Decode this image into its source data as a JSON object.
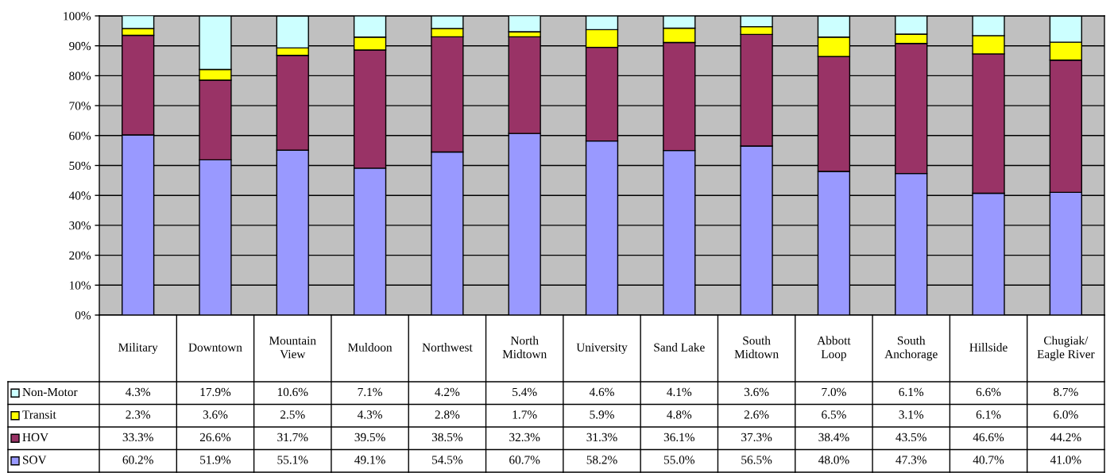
{
  "chart_data": {
    "type": "bar",
    "stacked": true,
    "categories": [
      "Military",
      "Downtown",
      "Mountain\nView",
      "Muldoon",
      "Northwest",
      "North\nMidtown",
      "University",
      "Sand Lake",
      "South\nMidtown",
      "Abbott\nLoop",
      "South\nAnchorage",
      "Hillside",
      "Chugiak/\nEagle River"
    ],
    "series": [
      {
        "name": "SOV",
        "color": "#9999ff",
        "values": [
          60.2,
          51.9,
          55.1,
          49.1,
          54.5,
          60.7,
          58.2,
          55.0,
          56.5,
          48.0,
          47.3,
          40.7,
          41.0
        ],
        "value_labels": [
          "60.2%",
          "51.9%",
          "55.1%",
          "49.1%",
          "54.5%",
          "60.7%",
          "58.2%",
          "55.0%",
          "56.5%",
          "48.0%",
          "47.3%",
          "40.7%",
          "41.0%"
        ]
      },
      {
        "name": "HOV",
        "color": "#993366",
        "values": [
          33.3,
          26.6,
          31.7,
          39.5,
          38.5,
          32.3,
          31.3,
          36.1,
          37.3,
          38.4,
          43.5,
          46.6,
          44.2
        ],
        "value_labels": [
          "33.3%",
          "26.6%",
          "31.7%",
          "39.5%",
          "38.5%",
          "32.3%",
          "31.3%",
          "36.1%",
          "37.3%",
          "38.4%",
          "43.5%",
          "46.6%",
          "44.2%"
        ]
      },
      {
        "name": "Transit",
        "color": "#ffff00",
        "values": [
          2.3,
          3.6,
          2.5,
          4.3,
          2.8,
          1.7,
          5.9,
          4.8,
          2.6,
          6.5,
          3.1,
          6.1,
          6.0
        ],
        "value_labels": [
          "2.3%",
          "3.6%",
          "2.5%",
          "4.3%",
          "2.8%",
          "1.7%",
          "5.9%",
          "4.8%",
          "2.6%",
          "6.5%",
          "3.1%",
          "6.1%",
          "6.0%"
        ]
      },
      {
        "name": "Non-Motor",
        "color": "#ccffff",
        "values": [
          4.3,
          17.9,
          10.6,
          7.1,
          4.2,
          5.4,
          4.6,
          4.1,
          3.6,
          7.0,
          6.1,
          6.6,
          8.7
        ],
        "value_labels": [
          "4.3%",
          "17.9%",
          "10.6%",
          "7.1%",
          "4.2%",
          "5.4%",
          "4.6%",
          "4.1%",
          "3.6%",
          "7.0%",
          "6.1%",
          "6.6%",
          "8.7%"
        ]
      }
    ],
    "ylim": [
      0,
      100
    ],
    "yticks": [
      {
        "value": 0,
        "label": "0%"
      },
      {
        "value": 10,
        "label": "10%"
      },
      {
        "value": 20,
        "label": "20%"
      },
      {
        "value": 30,
        "label": "30%"
      },
      {
        "value": 40,
        "label": "40%"
      },
      {
        "value": 50,
        "label": "50%"
      },
      {
        "value": 60,
        "label": "60%"
      },
      {
        "value": 70,
        "label": "70%"
      },
      {
        "value": 80,
        "label": "80%"
      },
      {
        "value": 90,
        "label": "90%"
      },
      {
        "value": 100,
        "label": "100%"
      }
    ],
    "grid": "y",
    "legend": "bottom left"
  }
}
